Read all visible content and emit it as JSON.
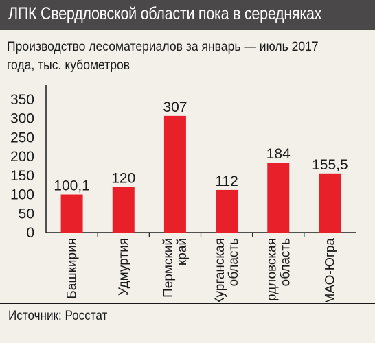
{
  "header": {
    "title": "ЛПК Свердловской области пока в середняках"
  },
  "subtitle": "Производство лесоматериалов за январь — июль 2017 года, тыс. кубометров",
  "source": "Источник: Росстат",
  "colors": {
    "bar": "#e8202a",
    "header_bg": "#4a4849",
    "page_bg": "#f3f0ea"
  },
  "chart_data": {
    "type": "bar",
    "title": "Производство лесоматериалов за январь — июль 2017 года, тыс. кубометров",
    "categories": [
      "Башкирия",
      "Удмуртия",
      "Пермский край",
      "Курганская область",
      "Свердловская область",
      "ХМАО-Югра"
    ],
    "category_lines": [
      [
        "Башкирия"
      ],
      [
        "Удмуртия"
      ],
      [
        "Пермский",
        "край"
      ],
      [
        "Курганская",
        "область"
      ],
      [
        "Свердловская",
        "область"
      ],
      [
        "ХМАО-Югра"
      ]
    ],
    "values": [
      100.1,
      120,
      307,
      112,
      184,
      155.5
    ],
    "value_labels": [
      "100,1",
      "120",
      "307",
      "112",
      "184",
      "155,5"
    ],
    "yticks": [
      0,
      50,
      100,
      150,
      200,
      250,
      300,
      350
    ],
    "ylim": [
      0,
      350
    ],
    "xlabel": "",
    "ylabel": "",
    "grid": false,
    "legend": "none"
  }
}
